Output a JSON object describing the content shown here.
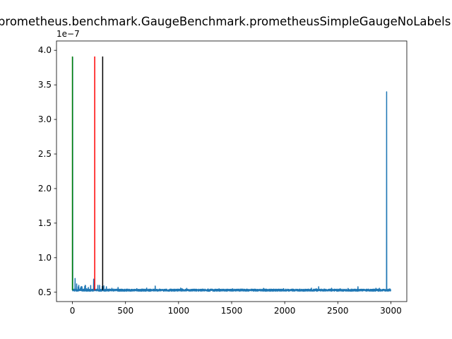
{
  "chart_data": {
    "type": "line",
    "title": "io.prometheus.benchmark.GaugeBenchmark.prometheusSimpleGaugeNoLabelsInc",
    "xlabel": "",
    "ylabel": "",
    "y_offset_label": "1e−7",
    "xlim": [
      -150,
      3150
    ],
    "ylim": [
      0.365,
      4.135
    ],
    "x_ticks": [
      0,
      500,
      1000,
      1500,
      2000,
      2500,
      3000
    ],
    "x_tick_labels": [
      "0",
      "500",
      "1000",
      "1500",
      "2000",
      "2500",
      "3000"
    ],
    "y_ticks": [
      0.5,
      1.0,
      1.5,
      2.0,
      2.5,
      3.0,
      3.5,
      4.0
    ],
    "y_tick_labels": [
      "0.5",
      "1.0",
      "1.5",
      "2.0",
      "2.5",
      "3.0",
      "3.5",
      "4.0"
    ],
    "grid": false,
    "series": [
      {
        "color": "#1f77b4",
        "baseline": 0.53,
        "x_range": [
          0,
          3000
        ],
        "spikes": [
          {
            "x": 2,
            "y": 3.9
          },
          {
            "x": 25,
            "y": 0.7
          },
          {
            "x": 40,
            "y": 0.62
          },
          {
            "x": 60,
            "y": 0.6
          },
          {
            "x": 90,
            "y": 0.58
          },
          {
            "x": 120,
            "y": 0.6
          },
          {
            "x": 150,
            "y": 0.57
          },
          {
            "x": 200,
            "y": 0.69
          },
          {
            "x": 240,
            "y": 0.6
          },
          {
            "x": 320,
            "y": 0.58
          },
          {
            "x": 430,
            "y": 0.57
          },
          {
            "x": 700,
            "y": 0.56
          },
          {
            "x": 780,
            "y": 0.59
          },
          {
            "x": 1020,
            "y": 0.56
          },
          {
            "x": 2320,
            "y": 0.58
          },
          {
            "x": 2690,
            "y": 0.58
          },
          {
            "x": 2960,
            "y": 3.4
          },
          {
            "x": 2990,
            "y": 0.55
          }
        ]
      }
    ],
    "vertical_lines": [
      {
        "x": 0,
        "y_from": 0.53,
        "y_to": 3.91,
        "color": "#008000"
      },
      {
        "x": 210,
        "y_from": 0.53,
        "y_to": 3.91,
        "color": "#ff0000"
      },
      {
        "x": 285,
        "y_from": 0.53,
        "y_to": 3.91,
        "color": "#000000"
      }
    ]
  }
}
